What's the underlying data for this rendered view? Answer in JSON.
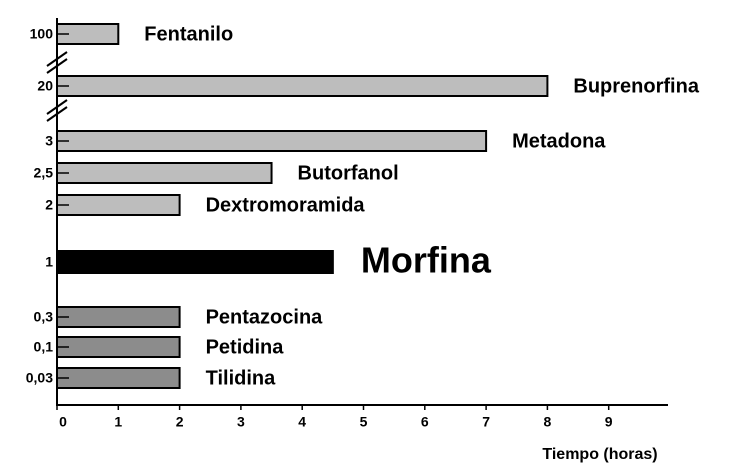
{
  "chart_data": {
    "type": "bar",
    "orientation": "horizontal",
    "x_label": "Tiempo (horas)",
    "categories": [
      "100",
      "20",
      "3",
      "2,5",
      "2",
      "1",
      "0,3",
      "0,1",
      "0,03"
    ],
    "names": [
      "Fentanilo",
      "Buprenorfina",
      "Metadona",
      "Butorfanol",
      "Dextromoramida",
      "Morfina",
      "Pentazocina",
      "Petidina",
      "Tilidina"
    ],
    "values": [
      1,
      8,
      7,
      3.5,
      2,
      4.5,
      2,
      2,
      2
    ],
    "colors": [
      "#bdbdbd",
      "#bdbdbd",
      "#bdbdbd",
      "#bdbdbd",
      "#bdbdbd",
      "#000000",
      "#8c8c8c",
      "#8c8c8c",
      "#8c8c8c"
    ],
    "xlim": [
      0,
      10
    ],
    "xticks": [
      0,
      1,
      2,
      3,
      4,
      5,
      6,
      7,
      8,
      9
    ]
  }
}
